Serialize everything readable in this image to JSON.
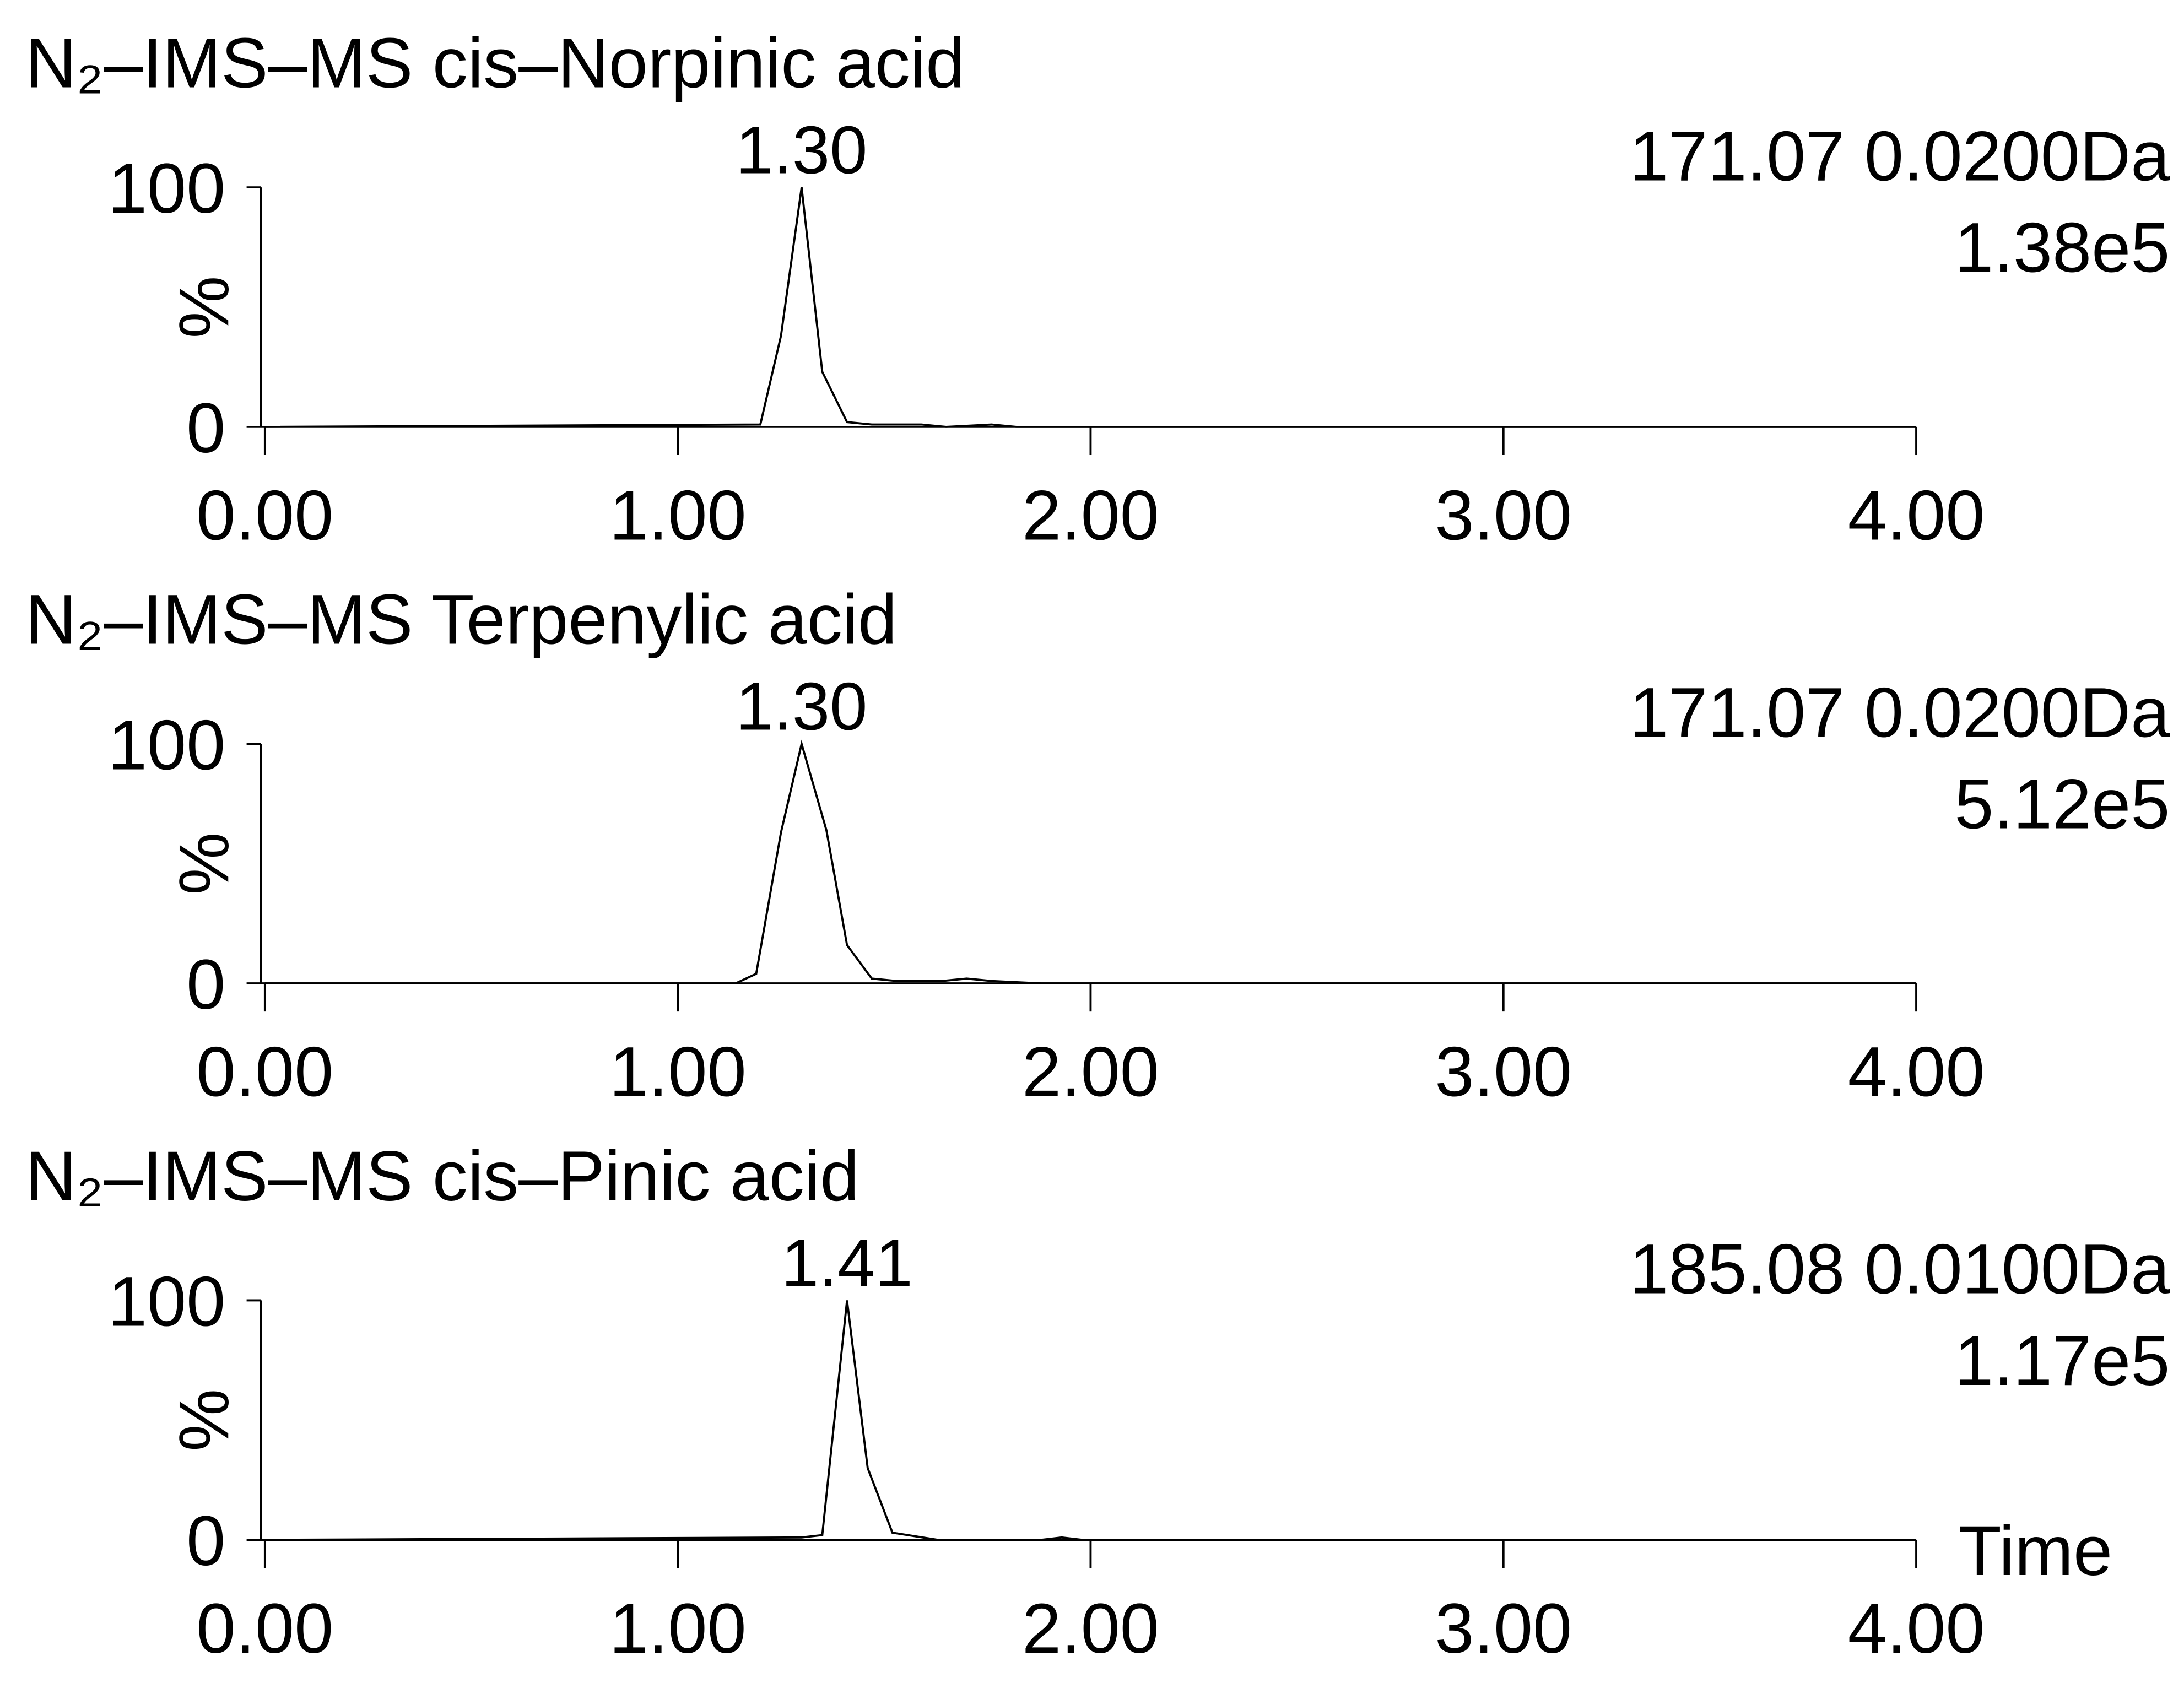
{
  "chart_data": [
    {
      "type": "line",
      "title": "N₂–IMS–MS cis–Norpinic acid",
      "peak_label": "1.30",
      "mass_label": "171.07 0.0200Da",
      "intensity_label": "1.38e5",
      "ylabel": "%",
      "color": "#000000",
      "x": [
        0,
        1.2,
        1.25,
        1.3,
        1.35,
        1.41,
        1.47,
        1.53,
        1.59,
        1.65,
        1.76,
        1.82,
        4
      ],
      "values": [
        0,
        1,
        38,
        100,
        23,
        2,
        1,
        1,
        1,
        0,
        1,
        0,
        0
      ],
      "xlim": [
        0,
        4
      ],
      "ylim": [
        0,
        100
      ],
      "xticks": [
        {
          "value": 0,
          "label": "0.00"
        },
        {
          "value": 1,
          "label": "1.00"
        },
        {
          "value": 2,
          "label": "2.00"
        },
        {
          "value": 3,
          "label": "3.00"
        },
        {
          "value": 4,
          "label": "4.00"
        }
      ],
      "yticks": [
        0,
        100
      ]
    },
    {
      "type": "line",
      "title": "N₂–IMS–MS Terpenylic acid",
      "peak_label": "1.30",
      "mass_label": "171.07 0.0200Da",
      "intensity_label": "5.12e5",
      "ylabel": "%",
      "color": "#000000",
      "x": [
        0,
        1.14,
        1.19,
        1.25,
        1.3,
        1.36,
        1.41,
        1.47,
        1.53,
        1.64,
        1.7,
        1.76,
        1.88,
        4
      ],
      "values": [
        0,
        0,
        4,
        63,
        100,
        64,
        16,
        2,
        1,
        1,
        2,
        1,
        0,
        0
      ],
      "xlim": [
        0,
        4
      ],
      "ylim": [
        0,
        100
      ],
      "xticks": [
        {
          "value": 0,
          "label": "0.00"
        },
        {
          "value": 1,
          "label": "1.00"
        },
        {
          "value": 2,
          "label": "2.00"
        },
        {
          "value": 3,
          "label": "3.00"
        },
        {
          "value": 4,
          "label": "4.00"
        }
      ],
      "yticks": [
        0,
        100
      ]
    },
    {
      "type": "line",
      "title": "N₂–IMS–MS cis–Pinic acid",
      "peak_label": "1.41",
      "mass_label": "185.08 0.0100Da",
      "intensity_label": "1.17e5",
      "ylabel": "%",
      "xlabel": "Time",
      "color": "#000000",
      "x": [
        0,
        1.3,
        1.35,
        1.41,
        1.46,
        1.52,
        1.63,
        1.88,
        1.93,
        1.98,
        4
      ],
      "values": [
        0,
        1,
        2,
        100,
        30,
        3,
        0,
        0,
        1,
        0,
        0
      ],
      "xlim": [
        0,
        4
      ],
      "ylim": [
        0,
        100
      ],
      "xticks": [
        {
          "value": 0,
          "label": "0.00"
        },
        {
          "value": 1,
          "label": "1.00"
        },
        {
          "value": 2,
          "label": "2.00"
        },
        {
          "value": 3,
          "label": "3.00"
        },
        {
          "value": 4,
          "label": "4.00"
        }
      ],
      "yticks": [
        0,
        100
      ]
    }
  ]
}
